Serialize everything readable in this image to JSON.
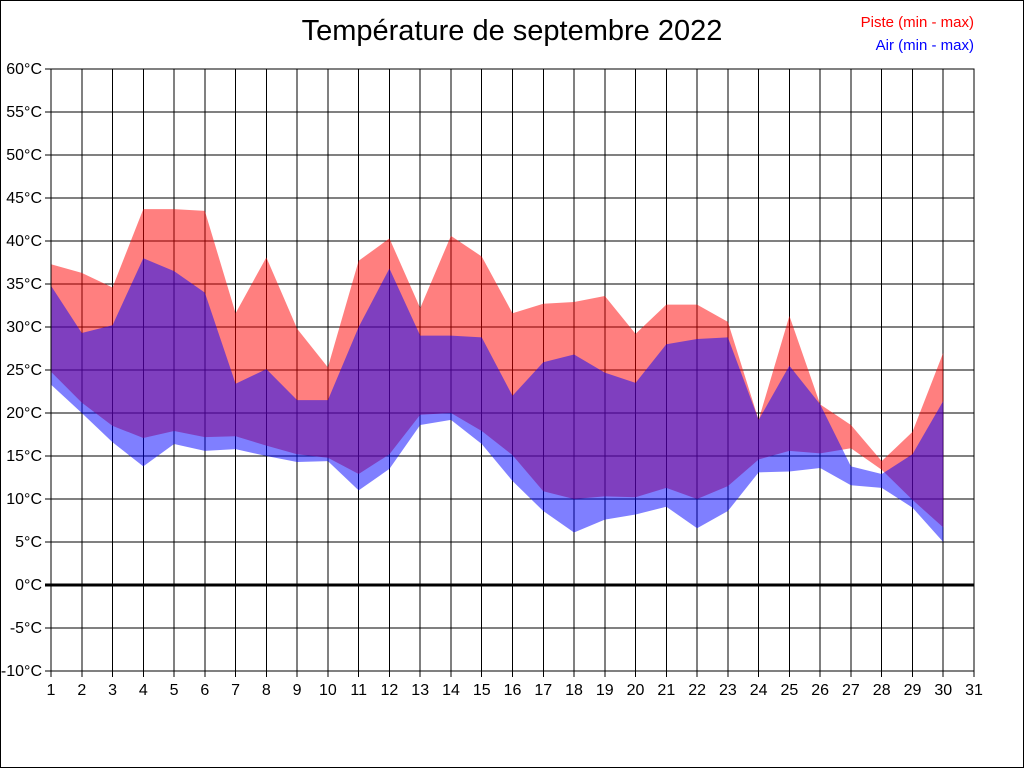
{
  "window": {
    "title": "Température de septembre 2022"
  },
  "chart_data": {
    "type": "area",
    "subtype": "min-max-range-bands",
    "title": "Température de septembre 2022",
    "xlabel": "",
    "ylabel": "",
    "xlim": [
      1,
      31
    ],
    "ylim": [
      -10,
      60
    ],
    "grid": true,
    "zero_line_value": 0,
    "legend_position": "top-right",
    "x": [
      1,
      2,
      3,
      4,
      5,
      6,
      7,
      8,
      9,
      10,
      11,
      12,
      13,
      14,
      15,
      16,
      17,
      18,
      19,
      20,
      21,
      22,
      23,
      24,
      25,
      26,
      27,
      28,
      29,
      30
    ],
    "x_ticks": [
      "1",
      "2",
      "3",
      "4",
      "5",
      "6",
      "7",
      "8",
      "9",
      "10",
      "11",
      "12",
      "13",
      "14",
      "15",
      "16",
      "17",
      "18",
      "19",
      "20",
      "21",
      "22",
      "23",
      "24",
      "25",
      "26",
      "27",
      "28",
      "29",
      "30",
      "31"
    ],
    "y_ticks": [
      "60°C",
      "55°C",
      "50°C",
      "45°C",
      "40°C",
      "35°C",
      "30°C",
      "25°C",
      "20°C",
      "15°C",
      "10°C",
      "5°C",
      "0°C",
      "-5°C",
      "-10°C"
    ],
    "y_tick_values": [
      60,
      55,
      50,
      45,
      40,
      35,
      30,
      25,
      20,
      15,
      10,
      5,
      0,
      -5,
      -10
    ],
    "series": [
      {
        "name": "Piste (min - max)",
        "legend_color": "#ff0000",
        "fill_color": "#ff0000",
        "fill_opacity": 0.5,
        "max": [
          37.3,
          36.3,
          34.6,
          43.7,
          43.7,
          43.5,
          31.6,
          38.1,
          29.8,
          25.3,
          37.7,
          40.3,
          32.2,
          40.6,
          38.2,
          31.6,
          32.7,
          32.9,
          33.6,
          29.2,
          32.6,
          32.6,
          30.6,
          19.2,
          31.3,
          21.0,
          18.6,
          14.4,
          17.8,
          27.0
        ],
        "min": [
          24.8,
          21.2,
          18.5,
          17.1,
          17.9,
          17.2,
          17.3,
          16.2,
          15.2,
          14.8,
          12.9,
          15.2,
          19.8,
          20.0,
          17.9,
          15.1,
          10.9,
          10.0,
          10.3,
          10.2,
          11.3,
          10.0,
          11.5,
          14.6,
          15.6,
          15.3,
          15.9,
          13.4,
          9.9,
          6.7
        ]
      },
      {
        "name": "Air (min - max)",
        "legend_color": "#0000ff",
        "fill_color": "#0000ff",
        "fill_opacity": 0.5,
        "max": [
          34.8,
          29.3,
          30.2,
          38.0,
          36.5,
          34.0,
          23.4,
          25.1,
          21.5,
          21.5,
          30.0,
          36.8,
          29.0,
          29.0,
          28.8,
          22.0,
          25.9,
          26.8,
          24.7,
          23.5,
          28.0,
          28.6,
          28.8,
          19.2,
          25.5,
          21.0,
          13.8,
          12.9,
          15.2,
          21.4
        ],
        "min": [
          23.3,
          20.0,
          16.6,
          13.8,
          16.4,
          15.6,
          15.8,
          15.0,
          14.3,
          14.4,
          11.0,
          13.5,
          18.6,
          19.2,
          16.4,
          12.1,
          8.6,
          6.1,
          7.6,
          8.2,
          9.1,
          6.6,
          8.6,
          13.1,
          13.2,
          13.6,
          11.6,
          11.3,
          9.0,
          5.0
        ]
      }
    ],
    "overlap_color_rendered": "#8040c0",
    "gridline_color": "#000000",
    "background_color": "#ffffff"
  },
  "legend": {
    "items": [
      {
        "label": "Piste (min - max)",
        "color": "#ff0000"
      },
      {
        "label": "Air (min - max)",
        "color": "#0000ff"
      }
    ]
  }
}
